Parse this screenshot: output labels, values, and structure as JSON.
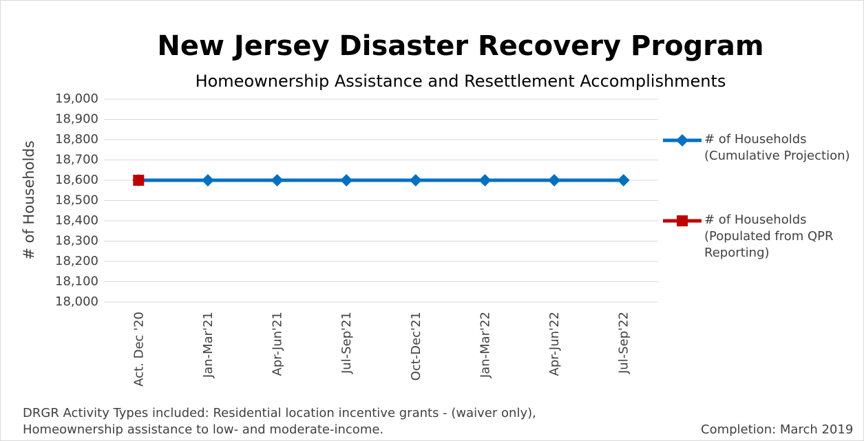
{
  "chart_data": {
    "type": "line",
    "title": "New Jersey Disaster Recovery Program",
    "subtitle": "Homeownership Assistance and Resettlement Accomplishments",
    "y_label": "# of Households",
    "categories": [
      "Act. Dec '20",
      "Jan-Mar'21",
      "Apr-Jun'21",
      "Jul-Sep'21",
      "Oct-Dec'21",
      "Jan-Mar'22",
      "Apr-Jun'22",
      "Jul-Sep'22"
    ],
    "series": [
      {
        "name": "# of Households (Cumulative Projection)",
        "color": "#0070c0",
        "marker": "diamond",
        "values": [
          18600,
          18600,
          18600,
          18600,
          18600,
          18600,
          18600,
          18600
        ]
      },
      {
        "name": "# of Households (Populated from QPR Reporting)",
        "color": "#c00000",
        "marker": "square",
        "values": [
          18600,
          null,
          null,
          null,
          null,
          null,
          null,
          null
        ]
      }
    ],
    "ylim": [
      18000,
      19000
    ],
    "yticks": [
      {
        "value": 18000,
        "label": "18,000"
      },
      {
        "value": 18100,
        "label": "18,100"
      },
      {
        "value": 18200,
        "label": "18,200"
      },
      {
        "value": 18300,
        "label": "18,300"
      },
      {
        "value": 18400,
        "label": "18,400"
      },
      {
        "value": 18500,
        "label": "18,500"
      },
      {
        "value": 18600,
        "label": "18,600"
      },
      {
        "value": 18700,
        "label": "18,700"
      },
      {
        "value": 18800,
        "label": "18,800"
      },
      {
        "value": 18900,
        "label": "18,900"
      },
      {
        "value": 19000,
        "label": "19,000"
      }
    ],
    "grid": true,
    "legend": "right",
    "footnote": "DRGR Activity Types included: Residential location incentive grants - (waiver only), Homeownership assistance to low- and moderate-income.",
    "completion": "Completion: March 2019"
  }
}
